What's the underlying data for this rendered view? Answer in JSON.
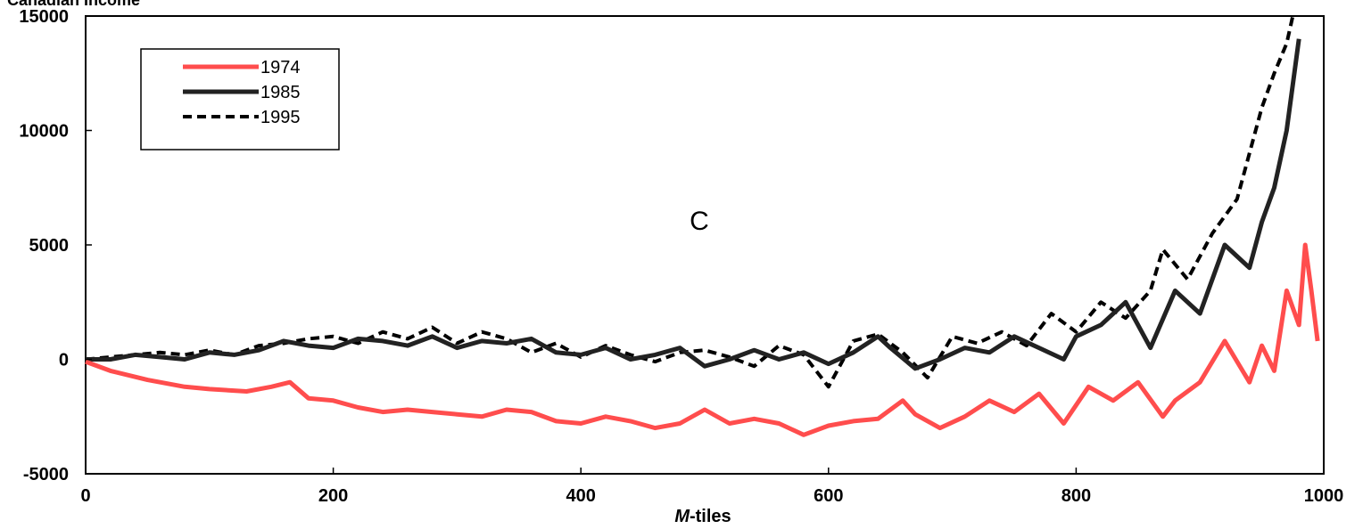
{
  "chart_data": {
    "type": "line",
    "title": "Canadian Income",
    "panel_label": "C",
    "xlabel_prefix": "M",
    "xlabel_suffix": "-tiles",
    "ylabel": "",
    "xlim": [
      0,
      1000
    ],
    "ylim": [
      -5000,
      15000
    ],
    "x_ticks": [
      0,
      200,
      400,
      600,
      800,
      1000
    ],
    "y_ticks": [
      15000,
      10000,
      5000,
      0,
      -5000
    ],
    "x_tick_labels": [
      "0",
      "200",
      "400",
      "600",
      "800",
      "1000"
    ],
    "y_tick_labels": [
      "15000",
      "10000",
      "5000",
      "0",
      "-5000"
    ],
    "grid": false,
    "legend_position": "top-left",
    "series": [
      {
        "name": "1974",
        "color": "#ff4d4d",
        "style": "solid",
        "x": [
          0,
          20,
          50,
          80,
          100,
          130,
          150,
          165,
          180,
          200,
          220,
          240,
          260,
          280,
          300,
          320,
          340,
          360,
          380,
          400,
          420,
          440,
          460,
          480,
          500,
          520,
          540,
          560,
          580,
          600,
          620,
          640,
          660,
          670,
          690,
          710,
          730,
          750,
          770,
          790,
          810,
          830,
          850,
          870,
          880,
          900,
          920,
          940,
          950,
          960,
          970,
          980,
          985,
          990,
          995
        ],
        "values": [
          -100,
          -500,
          -900,
          -1200,
          -1300,
          -1400,
          -1200,
          -1000,
          -1700,
          -1800,
          -2100,
          -2300,
          -2200,
          -2300,
          -2400,
          -2500,
          -2200,
          -2300,
          -2700,
          -2800,
          -2500,
          -2700,
          -3000,
          -2800,
          -2200,
          -2800,
          -2600,
          -2800,
          -3300,
          -2900,
          -2700,
          -2600,
          -1800,
          -2400,
          -3000,
          -2500,
          -1800,
          -2300,
          -1500,
          -2800,
          -1200,
          -1800,
          -1000,
          -2500,
          -1800,
          -1000,
          800,
          -1000,
          600,
          -500,
          3000,
          1500,
          5000,
          3000,
          800
        ]
      },
      {
        "name": "1985",
        "color": "#222222",
        "style": "solid",
        "x": [
          0,
          20,
          40,
          60,
          80,
          100,
          120,
          140,
          160,
          180,
          200,
          220,
          240,
          260,
          280,
          300,
          320,
          340,
          360,
          380,
          400,
          420,
          440,
          460,
          480,
          500,
          520,
          540,
          560,
          580,
          600,
          620,
          640,
          650,
          670,
          690,
          710,
          730,
          750,
          770,
          790,
          800,
          820,
          840,
          860,
          880,
          900,
          920,
          940,
          950,
          960,
          970,
          980
        ],
        "values": [
          0,
          0,
          200,
          100,
          0,
          300,
          200,
          400,
          800,
          600,
          500,
          900,
          800,
          600,
          1000,
          500,
          800,
          700,
          900,
          300,
          200,
          500,
          0,
          200,
          500,
          -300,
          0,
          400,
          0,
          300,
          -200,
          300,
          1000,
          500,
          -400,
          0,
          500,
          300,
          1000,
          500,
          0,
          1000,
          1500,
          2500,
          500,
          3000,
          2000,
          5000,
          4000,
          6000,
          7500,
          10000,
          14000
        ]
      },
      {
        "name": "1995",
        "color": "#000000",
        "style": "dashed",
        "x": [
          0,
          20,
          40,
          60,
          80,
          100,
          120,
          140,
          160,
          180,
          200,
          220,
          240,
          260,
          280,
          300,
          320,
          340,
          360,
          380,
          400,
          420,
          440,
          460,
          480,
          500,
          520,
          540,
          560,
          580,
          600,
          620,
          640,
          660,
          680,
          700,
          720,
          740,
          760,
          780,
          800,
          820,
          840,
          860,
          870,
          890,
          910,
          930,
          940,
          950,
          960,
          970,
          975
        ],
        "values": [
          0,
          100,
          200,
          300,
          200,
          400,
          200,
          600,
          700,
          900,
          1000,
          700,
          1200,
          900,
          1400,
          700,
          1200,
          900,
          300,
          700,
          100,
          600,
          200,
          -100,
          300,
          400,
          100,
          -300,
          600,
          200,
          -1200,
          800,
          1100,
          300,
          -800,
          1000,
          700,
          1200,
          600,
          2000,
          1200,
          2500,
          1800,
          3000,
          4800,
          3500,
          5500,
          7000,
          9000,
          11000,
          12500,
          13800,
          15000
        ]
      }
    ]
  }
}
